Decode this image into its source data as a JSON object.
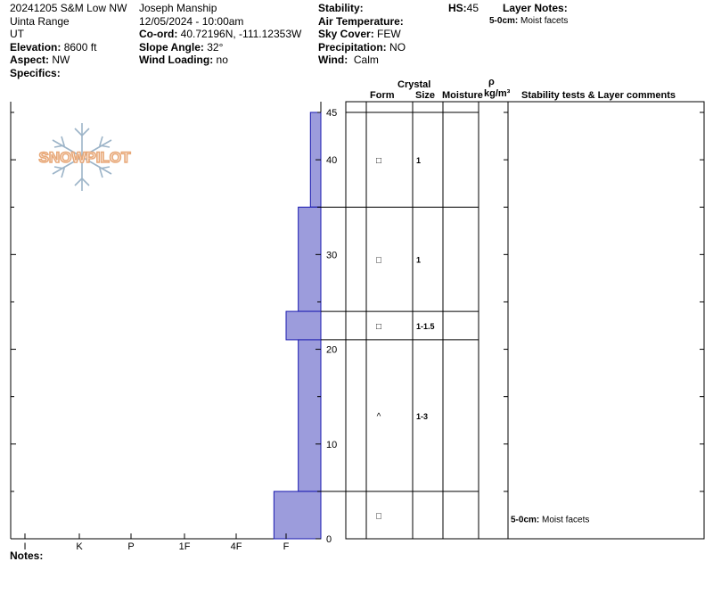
{
  "header": {
    "col1": [
      "20241205 S&M Low NW",
      "Uinta Range",
      "UT"
    ],
    "elevation_label": "Elevation:",
    "elevation_value": "8600 ft",
    "aspect_label": "Aspect:",
    "aspect_value": "NW",
    "specifics_label": "Specifics:",
    "observer": "Joseph Manship",
    "datetime": "12/05/2024 - 10:00am",
    "coord_label": "Co-ord:",
    "coord_value": "40.72196N, -111.12353W",
    "slope_label": "Slope Angle:",
    "slope_value": "32°",
    "wind_loading_label": "Wind Loading:",
    "wind_loading_value": "no",
    "stability_label": "Stability:",
    "air_temp_label": "Air Temperature:",
    "sky_label": "Sky Cover:",
    "sky_value": "FEW",
    "precip_label": "Precipitation:",
    "precip_value": "NO",
    "wind_label": "Wind:",
    "wind_value": "Calm",
    "hs_label": "HS:",
    "hs_value": "45",
    "layer_notes_label": "Layer Notes:",
    "layer_notes_value": "5-0cm:",
    "layer_notes_text": "Moist facets"
  },
  "columns": {
    "crystal": "Crystal",
    "form": "Form",
    "size": "Size",
    "moisture": "Moisture",
    "rho": "ρ",
    "density": "kg/m³",
    "stability": "Stability tests & Layer comments"
  },
  "notes_label": "Notes:",
  "logo_text": "SNOWPILOT",
  "colors": {
    "bar_fill": "#9c9cdc",
    "bar_stroke": "#1a1ab0",
    "logo": "#e8a878",
    "flake": "#9cb4c8"
  },
  "chart_data": {
    "type": "bar",
    "title": "",
    "hardness_ticks": [
      "I",
      "K",
      "P",
      "1F",
      "4F",
      "F"
    ],
    "depth_ticks": [
      0,
      10,
      20,
      30,
      40,
      45
    ],
    "ylim": [
      0,
      45
    ],
    "layers": [
      {
        "top": 45,
        "bottom": 35,
        "hardness": 0.3,
        "form": "□",
        "size": "1",
        "moisture": "",
        "density": "",
        "comment": ""
      },
      {
        "top": 35,
        "bottom": 24,
        "hardness": 0.65,
        "form": "□",
        "size": "1",
        "moisture": "",
        "density": "",
        "comment": ""
      },
      {
        "top": 24,
        "bottom": 21,
        "hardness": 1.0,
        "form": "□",
        "size": "1-1.5",
        "moisture": "",
        "density": "",
        "comment": ""
      },
      {
        "top": 21,
        "bottom": 5,
        "hardness": 0.65,
        "form": "^",
        "size": "1-3",
        "moisture": "",
        "density": "",
        "comment": ""
      },
      {
        "top": 5,
        "bottom": 0,
        "hardness": 1.35,
        "form": "□",
        "size": "",
        "moisture": "",
        "density": "",
        "comment_label": "5-0cm:",
        "comment": "Moist facets"
      }
    ]
  }
}
